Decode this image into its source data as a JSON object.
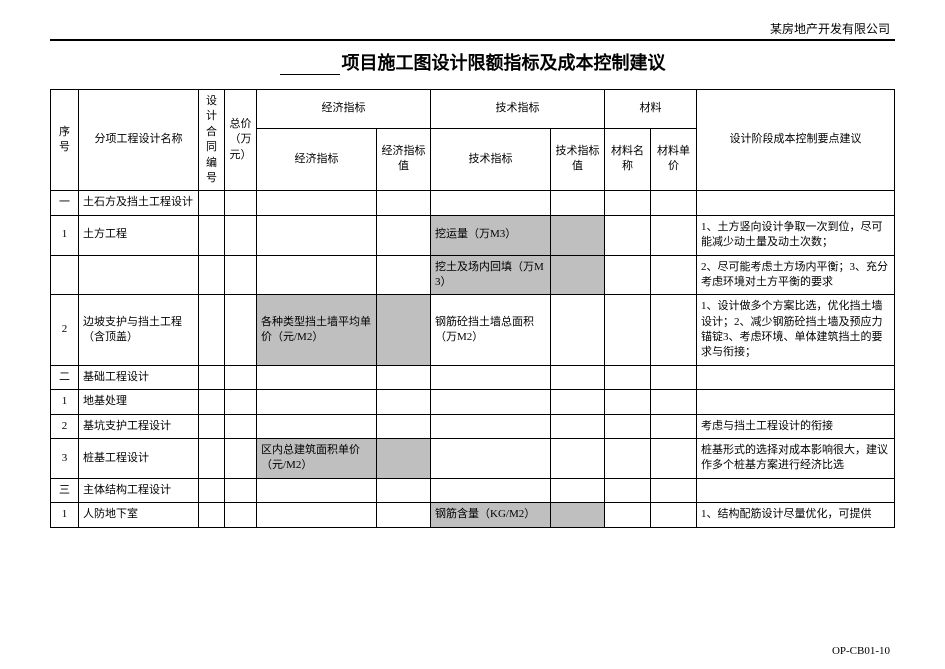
{
  "company": "某房地产开发有限公司",
  "title_prefix_blank": "",
  "title": "项目施工图设计限额指标及成本控制建议",
  "footer_code": "OP-CB01-10",
  "headers": {
    "seq": "序号",
    "name": "分项工程设计名称",
    "contract": "设计合同编号",
    "total": "总价（万元）",
    "econ_group": "经济指标",
    "econ_ind": "经济指标",
    "econ_val": "经济指标值",
    "tech_group": "技术指标",
    "tech_ind": "技术指标",
    "tech_val": "技术指标值",
    "mat_group": "材料",
    "mat_name": "材料名称",
    "mat_price": "材料单价",
    "advice": "设计阶段成本控制要点建议"
  },
  "rows": [
    {
      "seq": "一",
      "name": "土石方及挡土工程设计"
    },
    {
      "seq": "1",
      "name": "土方工程",
      "tech_ind": "挖运量（万M3）",
      "tech_shaded": true,
      "advice": "1、土方竖向设计争取一次到位，尽可能减少动土量及动土次数；"
    },
    {
      "tech_ind": "挖土及场内回填（万M3）",
      "tech_shaded": true,
      "advice": "2、尽可能考虑土方场内平衡；3、充分考虑环境对土方平衡的要求"
    },
    {
      "seq": "2",
      "name": "边坡支护与挡土工程（含顶盖）",
      "econ_ind": "各种类型挡土墙平均单价（元/M2）",
      "econ_shaded": true,
      "tech_ind": "钢筋砼挡土墙总面积（万M2）",
      "advice": "1、设计做多个方案比选，优化挡土墙设计；2、减少钢筋砼挡土墙及预应力锚锭3、考虑环境、单体建筑挡土的要求与衔接；"
    },
    {
      "seq": "二",
      "name": "基础工程设计"
    },
    {
      "seq": "1",
      "name": "地基处理"
    },
    {
      "seq": "2",
      "name": "基坑支护工程设计",
      "advice": "考虑与挡土工程设计的衔接"
    },
    {
      "seq": "3",
      "name": "桩基工程设计",
      "econ_ind": "区内总建筑面积单价（元/M2）",
      "econ_shaded": true,
      "advice": "桩基形式的选择对成本影响很大，建议作多个桩基方案进行经济比选"
    },
    {
      "seq": "三",
      "name": "主体结构工程设计"
    },
    {
      "seq": "1",
      "name": "人防地下室",
      "tech_ind": "钢筋含量（KG/M2）",
      "tech_shaded": true,
      "advice": "1、结构配筋设计尽量优化，可提供"
    }
  ]
}
